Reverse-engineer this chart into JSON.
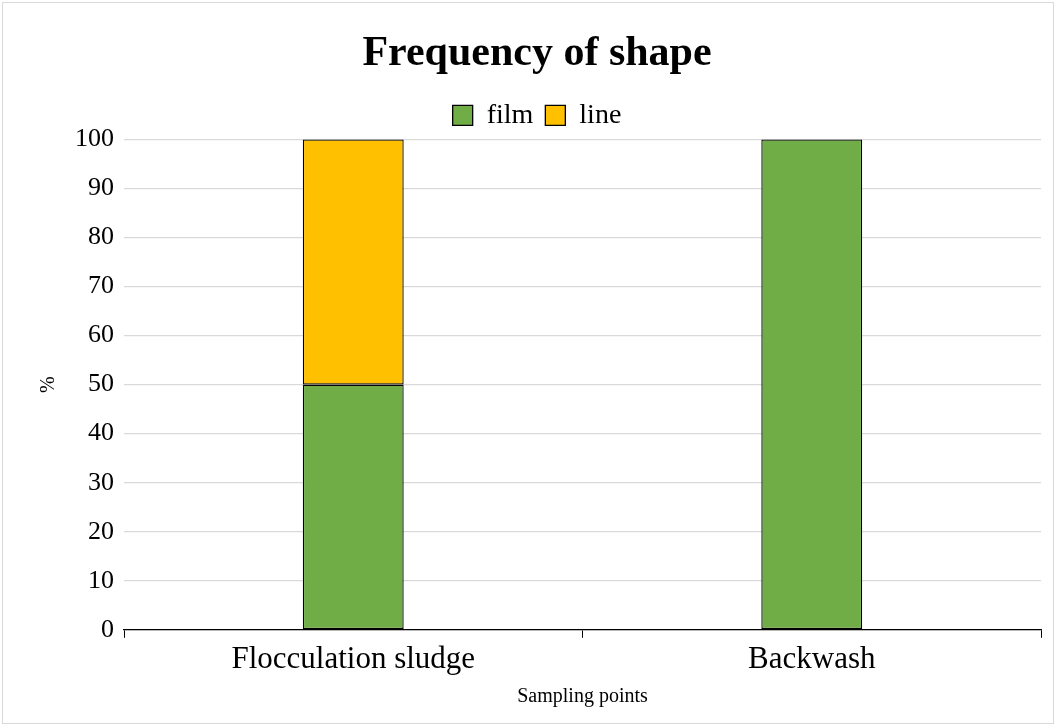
{
  "chart_data": {
    "type": "bar",
    "title": "Frequency of shape",
    "xlabel": "Sampling points",
    "ylabel": "%",
    "categories": [
      "Flocculation sludge",
      "Backwash"
    ],
    "series": [
      {
        "name": "film",
        "color": "#70ad47",
        "values": [
          50,
          100
        ]
      },
      {
        "name": "line",
        "color": "#ffc000",
        "values": [
          50,
          0
        ]
      }
    ],
    "stacked": true,
    "ylim": [
      0,
      100
    ],
    "yticks": [
      0,
      10,
      20,
      30,
      40,
      50,
      60,
      70,
      80,
      90,
      100
    ],
    "grid": "y",
    "legend": "top"
  }
}
